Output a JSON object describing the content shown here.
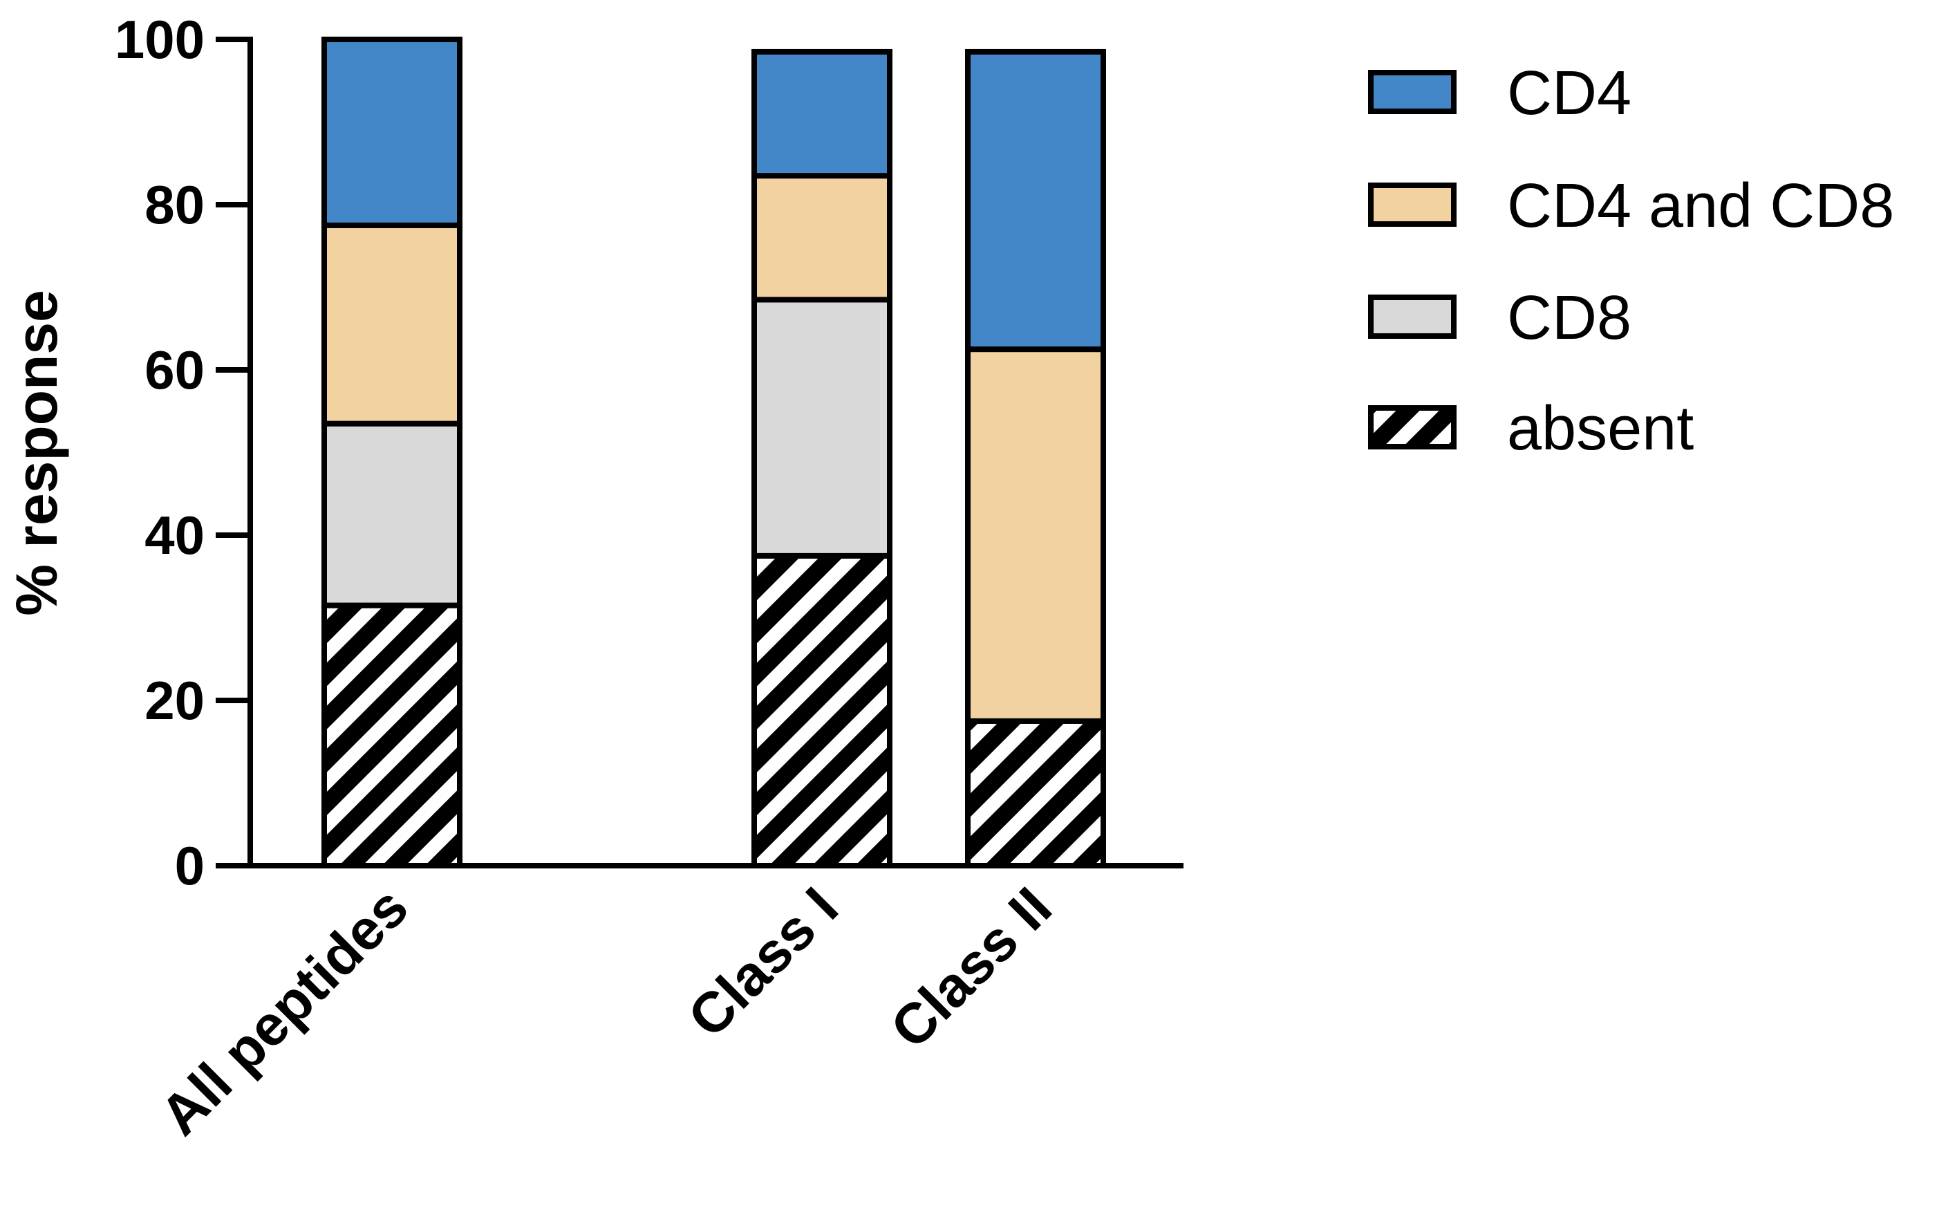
{
  "chart_data": {
    "type": "bar",
    "stacked": true,
    "title": "",
    "xlabel": "",
    "ylabel": "% response",
    "ylim": [
      0,
      100
    ],
    "yticks": [
      0,
      20,
      40,
      60,
      80,
      100
    ],
    "categories": [
      "All peptides",
      "Class I",
      "Class II"
    ],
    "series": [
      {
        "name": "absent",
        "key": "absent",
        "color": "#000000",
        "pattern": "diagonal-hatch",
        "values": [
          31.5,
          37.5,
          17.5
        ]
      },
      {
        "name": "CD8",
        "key": "cd8",
        "color": "#d9d9d9",
        "values": [
          22.0,
          31.0,
          0
        ]
      },
      {
        "name": "CD4 and CD8",
        "key": "cd4-and-cd8",
        "color": "#f3d2a2",
        "values": [
          24.0,
          15.0,
          45.0
        ]
      },
      {
        "name": "CD4",
        "key": "cd4",
        "color": "#4387c8",
        "values": [
          22.5,
          15.0,
          36.0
        ]
      }
    ],
    "legend": {
      "position": "top-right",
      "order": [
        "CD4",
        "CD4 and CD8",
        "CD8",
        "absent"
      ]
    }
  }
}
